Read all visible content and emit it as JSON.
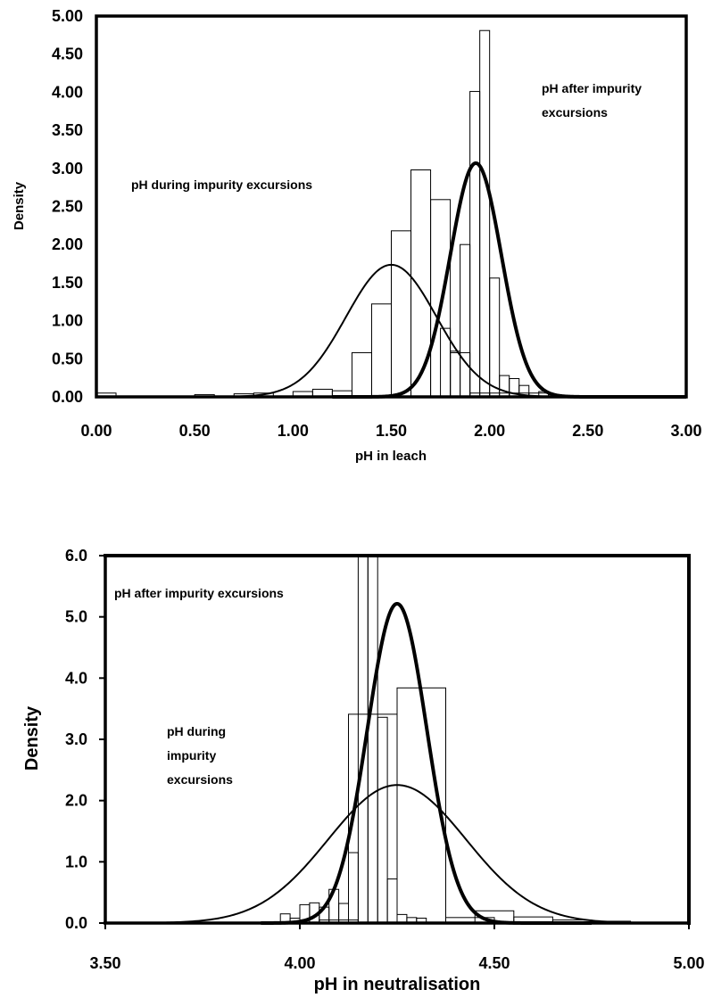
{
  "chart_data": [
    {
      "type": "histogram",
      "title": "",
      "xlabel": "pH in leach",
      "ylabel": "Density",
      "xlim": [
        0,
        3
      ],
      "ylim": [
        0,
        5
      ],
      "x_ticks": [
        "0.00",
        "0.50",
        "1.00",
        "1.50",
        "2.00",
        "2.50",
        "3.00"
      ],
      "y_ticks": [
        "0.00",
        "0.50",
        "1.00",
        "1.50",
        "2.00",
        "2.50",
        "3.00",
        "3.50",
        "4.00",
        "4.50",
        "5.00"
      ],
      "grid": false,
      "annotations": [
        {
          "lines": [
            "pH during impurity excursions"
          ]
        },
        {
          "lines": [
            "pH after impurity",
            "excursions"
          ]
        }
      ],
      "series": [
        {
          "kind": "bars",
          "bin_width": 0.1,
          "bars": [
            [
              0.0,
              0.05
            ],
            [
              0.5,
              0.03
            ],
            [
              0.7,
              0.04
            ],
            [
              0.8,
              0.05
            ],
            [
              1.0,
              0.07
            ],
            [
              1.1,
              0.1
            ],
            [
              1.2,
              0.08
            ],
            [
              1.3,
              0.58
            ],
            [
              1.4,
              1.22
            ],
            [
              1.5,
              2.18
            ],
            [
              1.6,
              2.98
            ],
            [
              1.7,
              2.59
            ],
            [
              1.8,
              0.58
            ],
            [
              1.9,
              0.05
            ],
            [
              2.0,
              0.05
            ],
            [
              2.1,
              0.05
            ],
            [
              2.2,
              0.05
            ]
          ]
        },
        {
          "kind": "bars",
          "bin_width": 0.05,
          "bars": [
            [
              1.75,
              0.9
            ],
            [
              1.8,
              0.6
            ],
            [
              1.85,
              2.0
            ],
            [
              1.9,
              4.01
            ],
            [
              1.95,
              4.81
            ],
            [
              2.0,
              1.56
            ],
            [
              2.05,
              0.28
            ],
            [
              2.1,
              0.24
            ],
            [
              2.15,
              0.15
            ],
            [
              2.25,
              0.07
            ],
            [
              2.3,
              0.03
            ]
          ]
        },
        {
          "kind": "curve",
          "weight": "thin",
          "distribution": "normal",
          "mean": 1.5,
          "sd": 0.23,
          "x_range": [
            0.0,
            3.0
          ]
        },
        {
          "kind": "curve",
          "weight": "thick",
          "distribution": "normal",
          "mean": 1.93,
          "sd": 0.13,
          "x_range": [
            1.2,
            3.0
          ]
        }
      ]
    },
    {
      "type": "histogram",
      "title": "",
      "xlabel": "pH in neutralisation",
      "ylabel": "Density",
      "xlim": [
        3.5,
        5
      ],
      "ylim": [
        0,
        6
      ],
      "x_ticks": [
        "3.50",
        "4.00",
        "4.50",
        "5.00"
      ],
      "y_ticks": [
        "0.0",
        "1.0",
        "2.0",
        "3.0",
        "4.0",
        "5.0",
        "6.0"
      ],
      "grid": false,
      "annotations": [
        {
          "lines": [
            "pH after impurity excursions"
          ]
        },
        {
          "lines": [
            "pH during",
            "impurity",
            "excursions"
          ]
        }
      ],
      "series": [
        {
          "kind": "bars",
          "bin_width": 0.025,
          "bars": [
            [
              3.95,
              0.15
            ],
            [
              3.975,
              0.08
            ],
            [
              4.0,
              0.3
            ],
            [
              4.025,
              0.33
            ],
            [
              4.05,
              0.26
            ],
            [
              4.075,
              0.55
            ],
            [
              4.1,
              0.32
            ],
            [
              4.125,
              1.15
            ],
            [
              4.15,
              6.0
            ],
            [
              4.175,
              6.0
            ],
            [
              4.2,
              3.36
            ],
            [
              4.225,
              0.72
            ],
            [
              4.25,
              0.14
            ],
            [
              4.275,
              0.09
            ],
            [
              4.3,
              0.08
            ]
          ]
        },
        {
          "kind": "bars",
          "bin_width": 0.125,
          "bars": [
            [
              4.125,
              3.41
            ],
            [
              4.25,
              3.84
            ],
            [
              4.375,
              0.09
            ]
          ]
        },
        {
          "kind": "bars",
          "bin_width": 0.1,
          "bars": [
            [
              4.05,
              0.05
            ],
            [
              4.45,
              0.2
            ],
            [
              4.55,
              0.1
            ],
            [
              4.65,
              0.05
            ],
            [
              4.75,
              0.03
            ]
          ]
        },
        {
          "kind": "curve",
          "weight": "thin",
          "distribution": "normal",
          "mean": 4.25,
          "sd": 0.177,
          "x_range": [
            3.5,
            5.0
          ]
        },
        {
          "kind": "curve",
          "weight": "thick",
          "distribution": "normal",
          "mean": 4.25,
          "sd": 0.0765,
          "x_range": [
            3.9,
            4.75
          ]
        }
      ]
    }
  ]
}
